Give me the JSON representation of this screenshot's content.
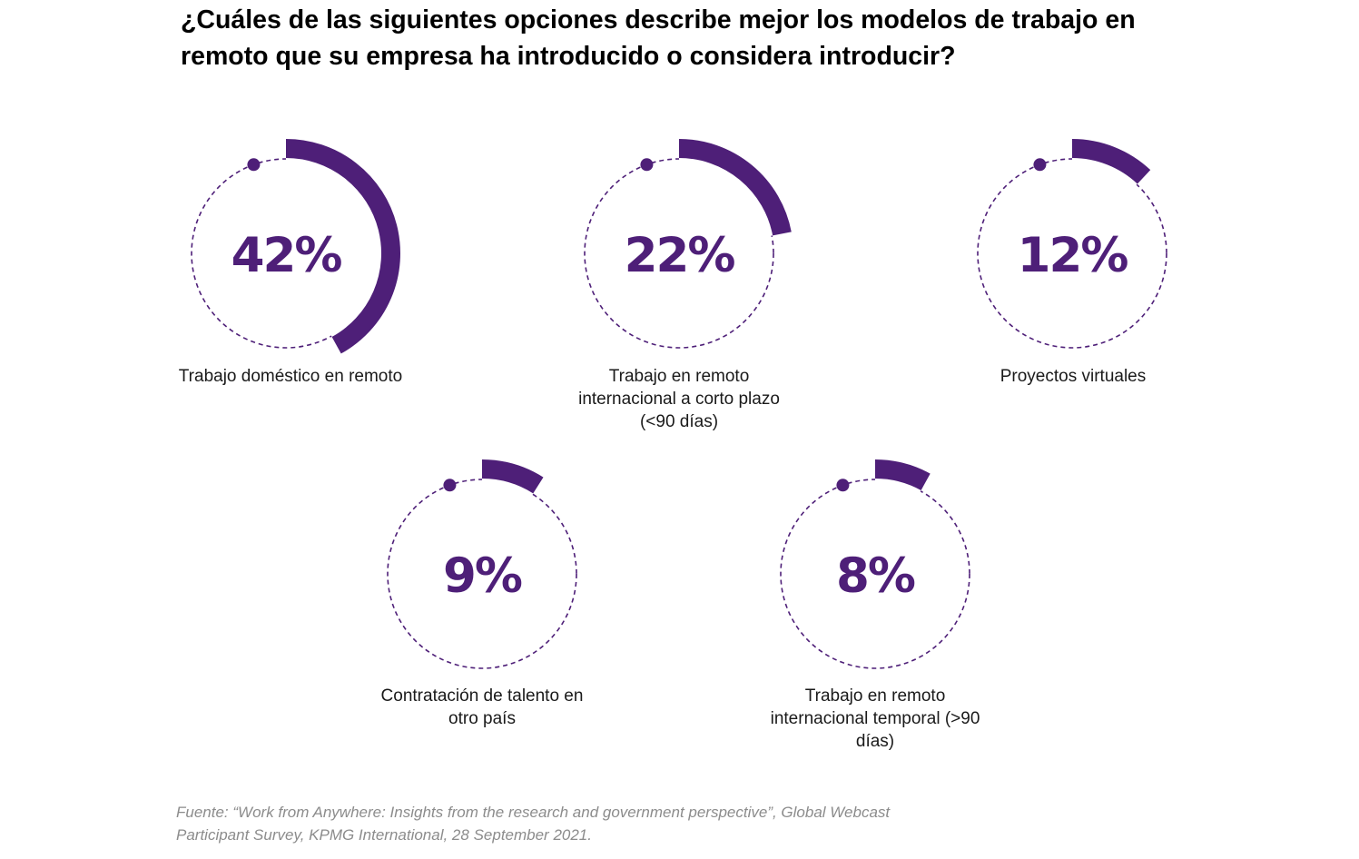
{
  "title": "¿Cuáles de las siguientes opciones describe mejor los modelos de trabajo en remoto que su empresa ha introducido o considera introducir?",
  "colors": {
    "accent": "#4e1f78",
    "dashed_ring": "#4e1f78"
  },
  "chart_data": {
    "type": "donut",
    "unit": "%",
    "items": [
      {
        "label": "Trabajo doméstico en remoto",
        "value": 42,
        "display": "42%"
      },
      {
        "label": "Trabajo en remoto internacional a corto plazo (<90 días)",
        "value": 22,
        "display": "22%"
      },
      {
        "label": "Proyectos virtuales",
        "value": 12,
        "display": "12%"
      },
      {
        "label": "Contratación de talento en otro país",
        "value": 9,
        "display": "9%"
      },
      {
        "label": "Trabajo en remoto internacional temporal (>90 días)",
        "value": 8,
        "display": "8%"
      }
    ]
  },
  "source": "Fuente: “Work from Anywhere: Insights from the research and government perspective”, Global Webcast Participant Survey, KPMG International, 28 September 2021."
}
